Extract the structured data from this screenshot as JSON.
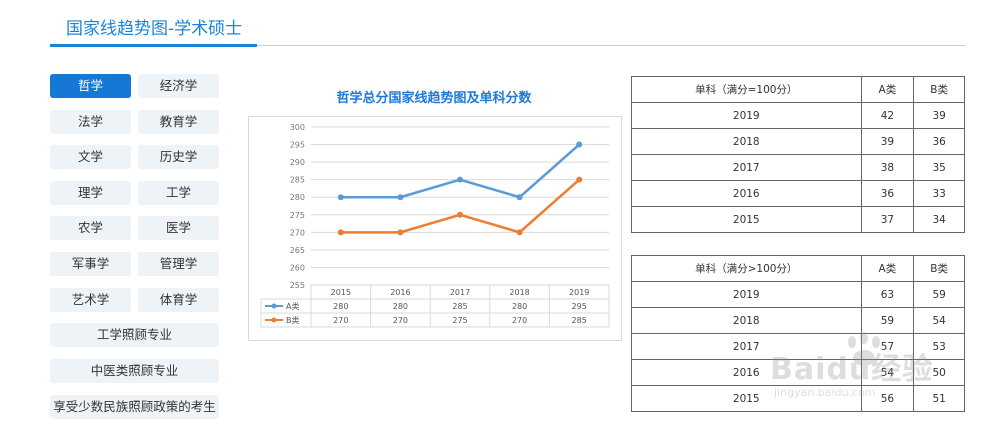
{
  "page": {
    "title": "国家线趋势图-学术硕士"
  },
  "subjects": [
    "哲学",
    "经济学",
    "法学",
    "教育学",
    "文学",
    "历史学",
    "理学",
    "工学",
    "农学",
    "医学",
    "军事学",
    "管理学",
    "艺术学",
    "体育学",
    "工学照顾专业",
    "中医类照顾专业",
    "享受少数民族照顾政策的考生"
  ],
  "active_subject": "哲学",
  "chart_data": {
    "type": "line",
    "title": "哲学总分国家线趋势图及单科分数",
    "categories": [
      "2015",
      "2016",
      "2017",
      "2018",
      "2019"
    ],
    "series": [
      {
        "name": "A类",
        "values": [
          280,
          280,
          285,
          280,
          295
        ],
        "color": "#5b9bd5"
      },
      {
        "name": "B类",
        "values": [
          270,
          270,
          275,
          270,
          285
        ],
        "color": "#ed7d31"
      }
    ],
    "ylim": [
      255,
      300
    ],
    "yticks": [
      255,
      260,
      265,
      270,
      275,
      280,
      285,
      290,
      295,
      300
    ],
    "grid": true,
    "legend": "data-table"
  },
  "table1": {
    "headers": [
      "单科（满分=100分）",
      "A类",
      "B类"
    ],
    "rows": [
      [
        "2019",
        "42",
        "39"
      ],
      [
        "2018",
        "39",
        "36"
      ],
      [
        "2017",
        "38",
        "35"
      ],
      [
        "2016",
        "36",
        "33"
      ],
      [
        "2015",
        "37",
        "34"
      ]
    ]
  },
  "table2": {
    "headers": [
      "单科（满分>100分）",
      "A类",
      "B类"
    ],
    "rows": [
      [
        "2019",
        "63",
        "59"
      ],
      [
        "2018",
        "59",
        "54"
      ],
      [
        "2017",
        "57",
        "53"
      ],
      [
        "2016",
        "54",
        "50"
      ],
      [
        "2015",
        "56",
        "51"
      ]
    ]
  },
  "watermark": {
    "brand": "Baidu经验",
    "url": "jingyan.baidu.com"
  }
}
